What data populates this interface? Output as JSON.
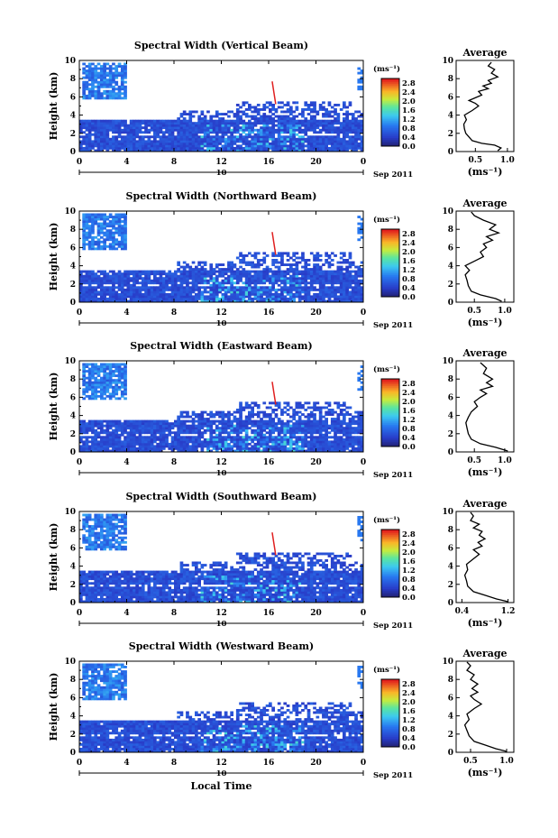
{
  "chart_data": [
    {
      "type": "heatmap",
      "title": "Spectral Width (Vertical Beam)",
      "ylabel": "Height (km)",
      "xticks": [
        "0",
        "4",
        "8",
        "12",
        "16",
        "20",
        "0"
      ],
      "yticks": [
        "0",
        "2",
        "4",
        "6",
        "8",
        "10"
      ],
      "xlim": [
        0,
        24
      ],
      "ylim": [
        0,
        10
      ],
      "date_label": "10",
      "month_label": "Sep 2011",
      "colorbar": {
        "unit": "(ms⁻¹)",
        "ticks": [
          "0.0",
          "0.4",
          "0.8",
          "1.2",
          "1.6",
          "2.0",
          "2.4",
          "2.8"
        ],
        "range": [
          0,
          3.0
        ]
      },
      "profile": {
        "title": "Average",
        "xlabel": "(ms⁻¹)",
        "xticks": [
          "0.5",
          "1.0"
        ],
        "xtick_values": [
          0.5,
          1.0
        ],
        "xlim": [
          0.2,
          1.1
        ],
        "yticks": [
          "0",
          "2",
          "4",
          "6",
          "8",
          "10"
        ],
        "points": [
          [
            0.85,
            0.1
          ],
          [
            0.9,
            0.4
          ],
          [
            0.8,
            0.7
          ],
          [
            0.6,
            0.9
          ],
          [
            0.45,
            1.2
          ],
          [
            0.4,
            1.6
          ],
          [
            0.35,
            2.0
          ],
          [
            0.33,
            2.5
          ],
          [
            0.32,
            3.0
          ],
          [
            0.36,
            3.5
          ],
          [
            0.33,
            4.0
          ],
          [
            0.45,
            4.5
          ],
          [
            0.55,
            5.0
          ],
          [
            0.5,
            5.3
          ],
          [
            0.4,
            5.6
          ],
          [
            0.5,
            5.9
          ],
          [
            0.6,
            6.2
          ],
          [
            0.55,
            6.6
          ],
          [
            0.7,
            6.9
          ],
          [
            0.62,
            7.2
          ],
          [
            0.75,
            7.5
          ],
          [
            0.7,
            7.8
          ],
          [
            0.85,
            8.2
          ],
          [
            0.75,
            8.6
          ],
          [
            0.8,
            9.0
          ],
          [
            0.7,
            9.4
          ],
          [
            0.75,
            9.8
          ]
        ]
      }
    },
    {
      "type": "heatmap",
      "title": "Spectral Width (Northward Beam)",
      "ylabel": "Height (km)",
      "xticks": [
        "0",
        "4",
        "8",
        "12",
        "16",
        "20",
        "0"
      ],
      "yticks": [
        "0",
        "2",
        "4",
        "6",
        "8",
        "10"
      ],
      "xlim": [
        0,
        24
      ],
      "ylim": [
        0,
        10
      ],
      "date_label": "10",
      "month_label": "Sep 2011",
      "colorbar": {
        "unit": "(ms⁻¹)",
        "ticks": [
          "0.0",
          "0.4",
          "0.8",
          "1.2",
          "1.6",
          "2.0",
          "2.4",
          "2.8"
        ],
        "range": [
          0,
          3.0
        ]
      },
      "profile": {
        "title": "Average",
        "xlabel": "(ms⁻¹)",
        "xticks": [
          "0.5",
          "1.0"
        ],
        "xtick_values": [
          0.5,
          1.0
        ],
        "xlim": [
          0.2,
          1.15
        ],
        "yticks": [
          "0",
          "2",
          "4",
          "6",
          "8",
          "10"
        ],
        "points": [
          [
            0.95,
            0.1
          ],
          [
            0.85,
            0.4
          ],
          [
            0.6,
            0.8
          ],
          [
            0.45,
            1.2
          ],
          [
            0.4,
            1.8
          ],
          [
            0.38,
            2.4
          ],
          [
            0.35,
            3.0
          ],
          [
            0.42,
            3.5
          ],
          [
            0.35,
            4.0
          ],
          [
            0.5,
            4.5
          ],
          [
            0.65,
            5.0
          ],
          [
            0.6,
            5.5
          ],
          [
            0.7,
            6.0
          ],
          [
            0.65,
            6.4
          ],
          [
            0.8,
            6.8
          ],
          [
            0.7,
            7.2
          ],
          [
            0.9,
            7.6
          ],
          [
            0.75,
            8.0
          ],
          [
            0.85,
            8.5
          ],
          [
            0.65,
            9.0
          ],
          [
            0.5,
            9.5
          ],
          [
            0.45,
            9.9
          ]
        ]
      }
    },
    {
      "type": "heatmap",
      "title": "Spectral Width (Eastward Beam)",
      "ylabel": "Height (km)",
      "xticks": [
        "0",
        "4",
        "8",
        "12",
        "16",
        "20",
        "0"
      ],
      "yticks": [
        "0",
        "2",
        "4",
        "6",
        "8",
        "10"
      ],
      "xlim": [
        0,
        24
      ],
      "ylim": [
        0,
        10
      ],
      "date_label": "10",
      "month_label": "Sep 2011",
      "colorbar": {
        "unit": "(ms⁻¹)",
        "ticks": [
          "0.0",
          "0.4",
          "0.8",
          "1.2",
          "1.6",
          "2.0",
          "2.4",
          "2.8"
        ],
        "range": [
          0,
          3.0
        ]
      },
      "profile": {
        "title": "Average",
        "xlabel": "(ms⁻¹)",
        "xticks": [
          "0.5",
          "1.0"
        ],
        "xtick_values": [
          0.5,
          1.0
        ],
        "xlim": [
          0.2,
          1.15
        ],
        "yticks": [
          "0",
          "2",
          "4",
          "6",
          "8",
          "10"
        ],
        "points": [
          [
            1.05,
            0.1
          ],
          [
            0.85,
            0.5
          ],
          [
            0.6,
            0.9
          ],
          [
            0.45,
            1.4
          ],
          [
            0.4,
            2.0
          ],
          [
            0.38,
            2.6
          ],
          [
            0.36,
            3.2
          ],
          [
            0.4,
            3.8
          ],
          [
            0.45,
            4.4
          ],
          [
            0.55,
            5.0
          ],
          [
            0.5,
            5.5
          ],
          [
            0.6,
            6.0
          ],
          [
            0.7,
            6.4
          ],
          [
            0.6,
            6.8
          ],
          [
            0.8,
            7.2
          ],
          [
            0.7,
            7.6
          ],
          [
            0.8,
            8.0
          ],
          [
            0.65,
            8.6
          ],
          [
            0.7,
            9.2
          ],
          [
            0.6,
            9.8
          ]
        ]
      }
    },
    {
      "type": "heatmap",
      "title": "Spectral Width (Southward Beam)",
      "ylabel": "Height (km)",
      "xticks": [
        "0",
        "4",
        "8",
        "12",
        "16",
        "20",
        "0"
      ],
      "yticks": [
        "0",
        "2",
        "4",
        "6",
        "8",
        "10"
      ],
      "xlim": [
        0,
        24
      ],
      "ylim": [
        0,
        10
      ],
      "date_label": "10",
      "month_label": "Sep 2011",
      "colorbar": {
        "unit": "(ms⁻¹)",
        "ticks": [
          "0.0",
          "0.4",
          "0.8",
          "1.2",
          "1.6",
          "2.0",
          "2.4",
          "2.8"
        ],
        "range": [
          0,
          3.0
        ]
      },
      "profile": {
        "title": "Average",
        "xlabel": "(ms⁻¹)",
        "xticks": [
          "0.4",
          "1.2"
        ],
        "xtick_values": [
          0.4,
          1.2
        ],
        "xlim": [
          0.3,
          1.3
        ],
        "yticks": [
          "0",
          "2",
          "4",
          "6",
          "8",
          "10"
        ],
        "points": [
          [
            1.2,
            0.1
          ],
          [
            1.0,
            0.4
          ],
          [
            0.8,
            0.8
          ],
          [
            0.6,
            1.2
          ],
          [
            0.5,
            1.8
          ],
          [
            0.48,
            2.4
          ],
          [
            0.45,
            3.0
          ],
          [
            0.5,
            3.6
          ],
          [
            0.48,
            4.2
          ],
          [
            0.6,
            4.8
          ],
          [
            0.7,
            5.3
          ],
          [
            0.6,
            5.8
          ],
          [
            0.75,
            6.2
          ],
          [
            0.68,
            6.6
          ],
          [
            0.8,
            7.0
          ],
          [
            0.7,
            7.4
          ],
          [
            0.75,
            7.8
          ],
          [
            0.6,
            8.2
          ],
          [
            0.7,
            8.6
          ],
          [
            0.55,
            9.0
          ],
          [
            0.6,
            9.5
          ],
          [
            0.55,
            9.9
          ]
        ]
      }
    },
    {
      "type": "heatmap",
      "title": "Spectral Width (Westward Beam)",
      "ylabel": "Height (km)",
      "xlabel": "Local Time",
      "xticks": [
        "0",
        "4",
        "8",
        "12",
        "16",
        "20",
        "0"
      ],
      "yticks": [
        "0",
        "2",
        "4",
        "6",
        "8",
        "10"
      ],
      "xlim": [
        0,
        24
      ],
      "ylim": [
        0,
        10
      ],
      "date_label": "10",
      "month_label": "Sep 2011",
      "colorbar": {
        "unit": "(ms⁻¹)",
        "ticks": [
          "0.0",
          "0.4",
          "0.8",
          "1.2",
          "1.6",
          "2.0",
          "2.4",
          "2.8"
        ],
        "range": [
          0,
          3.0
        ]
      },
      "profile": {
        "title": "Average",
        "xlabel": "(ms⁻¹)",
        "xticks": [
          "0.5",
          "1.0"
        ],
        "xtick_values": [
          0.5,
          1.0
        ],
        "xlim": [
          0.3,
          1.1
        ],
        "yticks": [
          "0",
          "2",
          "4",
          "6",
          "8",
          "10"
        ],
        "points": [
          [
            1.0,
            0.1
          ],
          [
            0.85,
            0.4
          ],
          [
            0.7,
            0.8
          ],
          [
            0.55,
            1.2
          ],
          [
            0.48,
            1.8
          ],
          [
            0.45,
            2.4
          ],
          [
            0.42,
            3.0
          ],
          [
            0.48,
            3.6
          ],
          [
            0.45,
            4.2
          ],
          [
            0.55,
            4.8
          ],
          [
            0.65,
            5.3
          ],
          [
            0.55,
            5.8
          ],
          [
            0.5,
            6.2
          ],
          [
            0.6,
            6.6
          ],
          [
            0.52,
            7.0
          ],
          [
            0.6,
            7.5
          ],
          [
            0.5,
            8.0
          ],
          [
            0.55,
            8.5
          ],
          [
            0.45,
            9.0
          ],
          [
            0.5,
            9.5
          ],
          [
            0.45,
            9.9
          ]
        ]
      }
    }
  ]
}
